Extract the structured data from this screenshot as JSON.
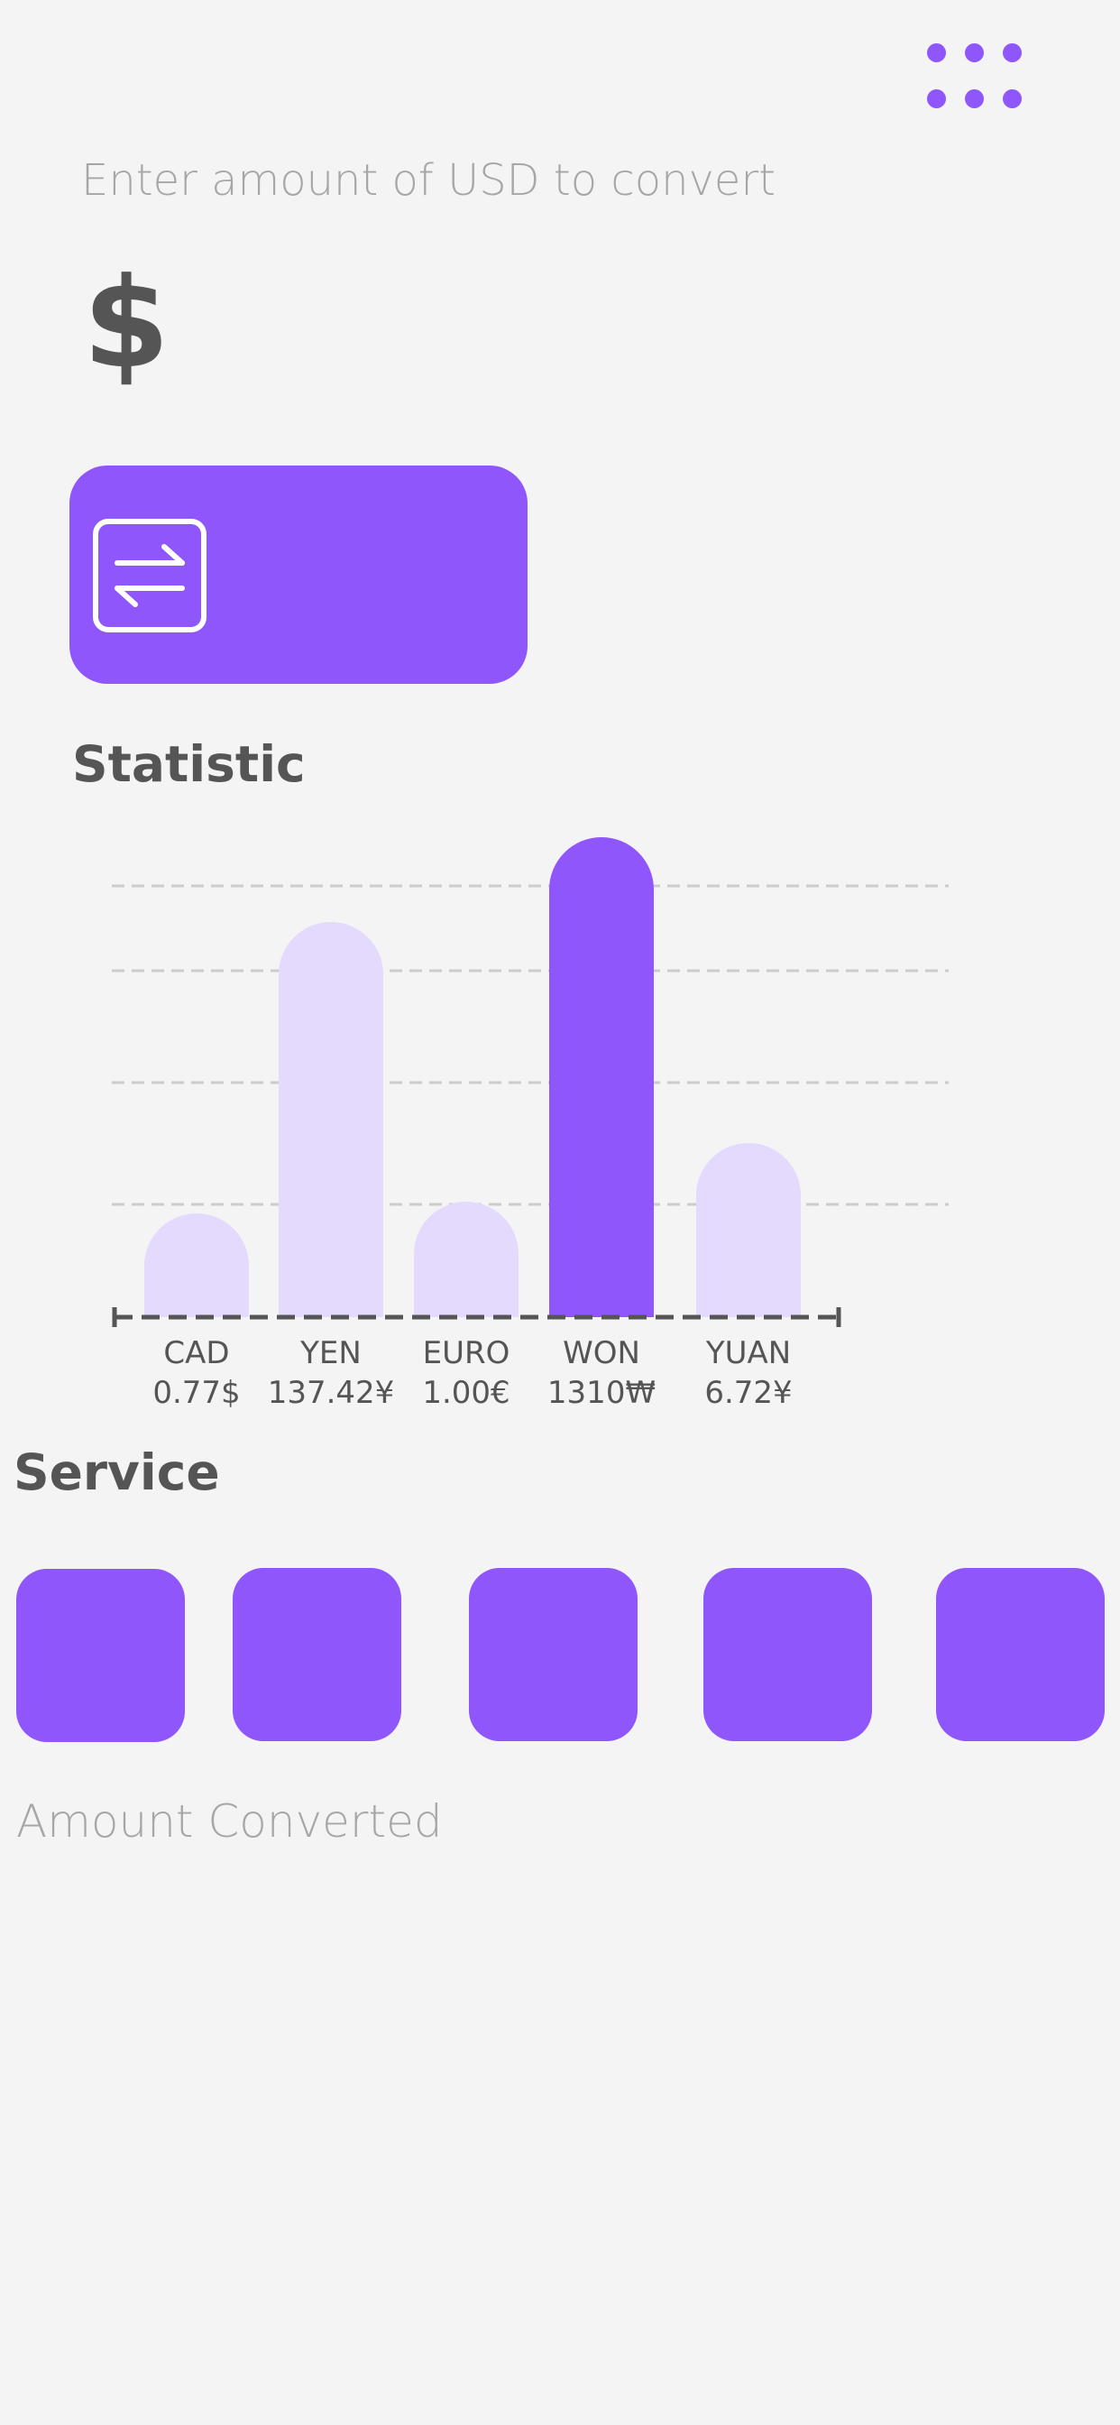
{
  "header": {
    "menu_icon": "grid-dots-icon",
    "accent_color": "#8f56fb"
  },
  "converter": {
    "prompt": "Enter amount of USD to convert",
    "currency_symbol": "$",
    "amount_value": "",
    "swap_icon": "swap-arrows-icon"
  },
  "statistic": {
    "title": "Statistic"
  },
  "chart_data": {
    "type": "bar",
    "title": "Statistic",
    "categories": [
      "CAD",
      "YEN",
      "EURO",
      "WON",
      "YUAN"
    ],
    "value_labels": [
      "0.77$",
      "137.42¥",
      "1.00€",
      "1310₩",
      "6.72¥"
    ],
    "values": [
      0.77,
      137.42,
      1.0,
      1310,
      6.72
    ],
    "highlight": "WON",
    "grid": true,
    "colors": {
      "highlight": "#8f56fb",
      "normal": "#e3dafd",
      "axis": "#555555",
      "grid": "#cccccc"
    }
  },
  "service": {
    "title": "Service",
    "tiles": [
      "service-tile-1",
      "service-tile-2",
      "service-tile-3",
      "service-tile-4",
      "service-tile-5"
    ]
  },
  "result": {
    "label": "Amount Converted"
  }
}
